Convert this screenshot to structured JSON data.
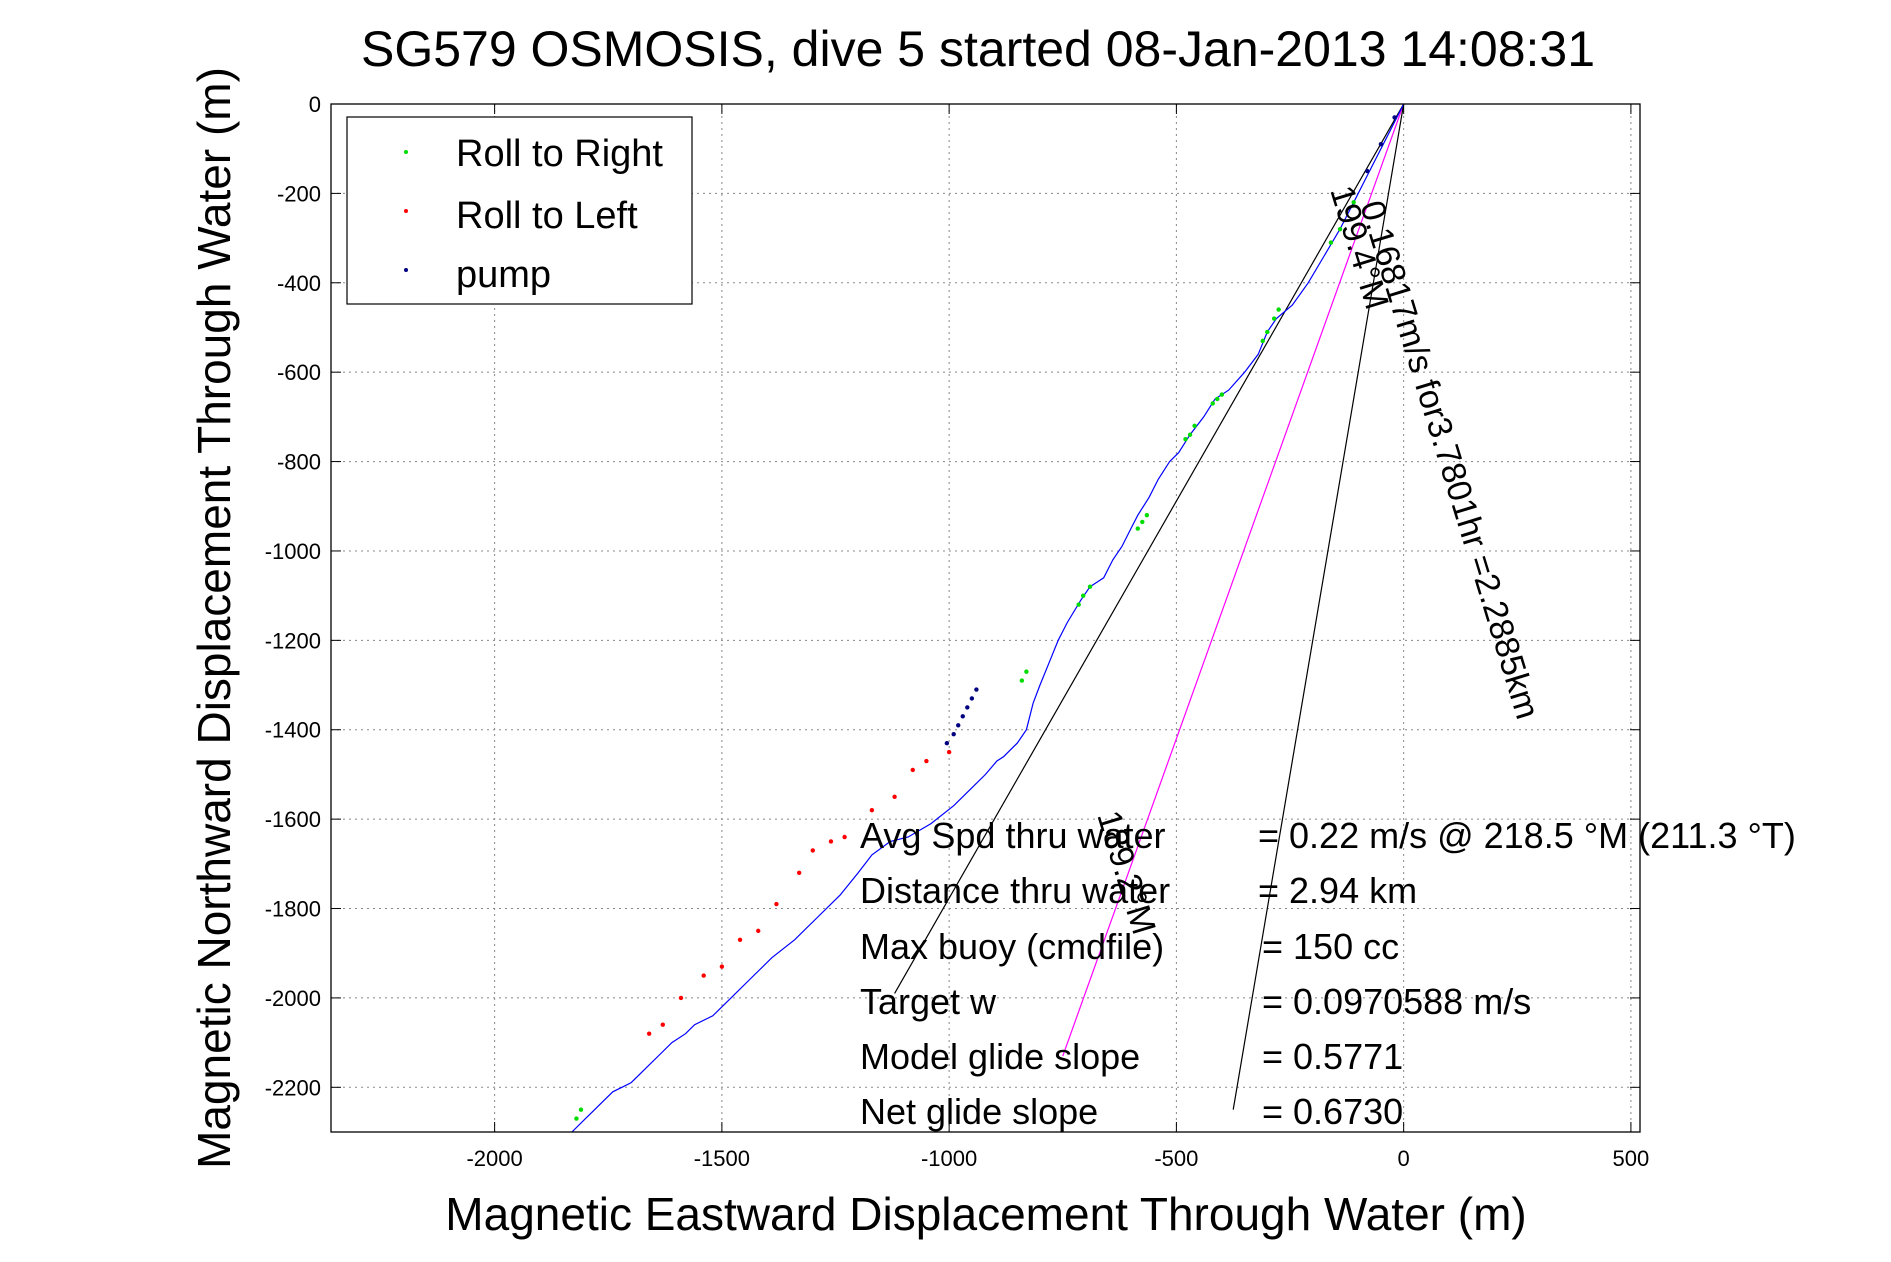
{
  "chart_data": {
    "type": "line",
    "title": "SG579 OSMOSIS, dive 5 started 08-Jan-2013 14:08:31",
    "xlabel": "Magnetic Eastward Displacement Through Water (m)",
    "ylabel": "Magnetic Northward Displacement Through Water (m)",
    "xlim": [
      -2360,
      520
    ],
    "ylim": [
      -2300,
      0
    ],
    "xticks": [
      -2000,
      -1500,
      -1000,
      -500,
      0,
      500
    ],
    "yticks": [
      0,
      -200,
      -400,
      -600,
      -800,
      -1000,
      -1200,
      -1400,
      -1600,
      -1800,
      -2000,
      -2200
    ],
    "grid": true,
    "legend_position": "top-left",
    "legend": [
      {
        "label": "Roll to Right",
        "color": "#00dd00"
      },
      {
        "label": "Roll to Left",
        "color": "#ff0000"
      },
      {
        "label": "pump",
        "color": "#000080"
      }
    ],
    "track_color": "#0000ff",
    "track": {
      "x": [
        0,
        -40,
        -80,
        -110,
        -140,
        -175,
        -210,
        -245,
        -280,
        -300,
        -320,
        -350,
        -385,
        -415,
        -440,
        -470,
        -495,
        -515,
        -540,
        -560,
        -585,
        -600,
        -620,
        -640,
        -660,
        -675,
        -690,
        -710,
        -740,
        -760,
        -780,
        -800,
        -815,
        -830,
        -850,
        -870,
        -880,
        -895,
        -920,
        -960,
        -990,
        -1040,
        -1090,
        -1130,
        -1170,
        -1200,
        -1240,
        -1290,
        -1340,
        -1390,
        -1440,
        -1480,
        -1520,
        -1560,
        -1580,
        -1610,
        -1640,
        -1670,
        -1700,
        -1720,
        -1740,
        -1760,
        -1780,
        -1800,
        -1830
      ],
      "y": [
        0,
        -80,
        -160,
        -220,
        -280,
        -340,
        -400,
        -450,
        -480,
        -510,
        -560,
        -600,
        -640,
        -660,
        -700,
        -740,
        -780,
        -800,
        -840,
        -880,
        -920,
        -950,
        -990,
        -1020,
        -1060,
        -1070,
        -1080,
        -1110,
        -1160,
        -1200,
        -1250,
        -1300,
        -1340,
        -1400,
        -1430,
        -1450,
        -1460,
        -1470,
        -1500,
        -1540,
        -1570,
        -1610,
        -1640,
        -1650,
        -1680,
        -1720,
        -1770,
        -1820,
        -1870,
        -1910,
        -1960,
        -2000,
        -2040,
        -2060,
        -2080,
        -2100,
        -2130,
        -2160,
        -2190,
        -2200,
        -2210,
        -2230,
        -2250,
        -2270,
        -2300
      ]
    },
    "roll_right": {
      "x": [
        -110,
        -140,
        -160,
        -275,
        -285,
        -300,
        -310,
        -400,
        -410,
        -420,
        -460,
        -470,
        -480,
        -565,
        -575,
        -585,
        -690,
        -705,
        -715,
        -830,
        -840,
        -1810,
        -1820
      ],
      "y": [
        -220,
        -280,
        -310,
        -460,
        -480,
        -510,
        -530,
        -650,
        -660,
        -670,
        -720,
        -740,
        -750,
        -920,
        -935,
        -950,
        -1080,
        -1100,
        -1120,
        -1270,
        -1290,
        -2250,
        -2270
      ]
    },
    "roll_left": {
      "x": [
        -1000,
        -1050,
        -1080,
        -1120,
        -1170,
        -1230,
        -1260,
        -1300,
        -1330,
        -1380,
        -1420,
        -1460,
        -1500,
        -1540,
        -1590,
        -1630,
        -1660
      ],
      "y": [
        -1450,
        -1470,
        -1490,
        -1550,
        -1580,
        -1640,
        -1650,
        -1670,
        -1720,
        -1790,
        -1850,
        -1870,
        -1930,
        -1950,
        -2000,
        -2060,
        -2080
      ]
    },
    "pump": {
      "x": [
        -20,
        -50,
        -80,
        -940,
        -950,
        -960,
        -970,
        -980,
        -990,
        -1005
      ],
      "y": [
        -30,
        -90,
        -150,
        -1310,
        -1330,
        -1350,
        -1370,
        -1390,
        -1410,
        -1430
      ]
    },
    "lines": [
      {
        "name": "heading-line-1",
        "color": "#000000",
        "x": [
          0,
          -1120
        ],
        "y": [
          0,
          -1990
        ]
      },
      {
        "name": "current-line",
        "color": "#ff00ff",
        "x": [
          0,
          -750
        ],
        "y": [
          0,
          -2130
        ]
      },
      {
        "name": "heading-line-2",
        "color": "#000000",
        "x": [
          0,
          -375
        ],
        "y": [
          0,
          -2250
        ]
      }
    ],
    "rotated_labels": [
      {
        "text": "0.16817m/s for3.7801hr =2.2885km",
        "color": "#000000"
      },
      {
        "text": "199.4°M",
        "color": "#000000"
      },
      {
        "text": "189.2°M",
        "color": "#000000"
      }
    ],
    "annotations": [
      {
        "label": "Avg Spd thru water",
        "value": "=  0.22 m/s @ 218.5 °M (211.3 °T)"
      },
      {
        "label": "Distance thru water",
        "value": "=  2.94 km"
      },
      {
        "label": "Max buoy (cmdfile)",
        "value": "= 150 cc"
      },
      {
        "label": "Target w",
        "value": "= 0.0970588 m/s"
      },
      {
        "label": "Model glide slope",
        "value": "= 0.5771"
      },
      {
        "label": "Net glide slope",
        "value": "= 0.6730"
      }
    ]
  }
}
